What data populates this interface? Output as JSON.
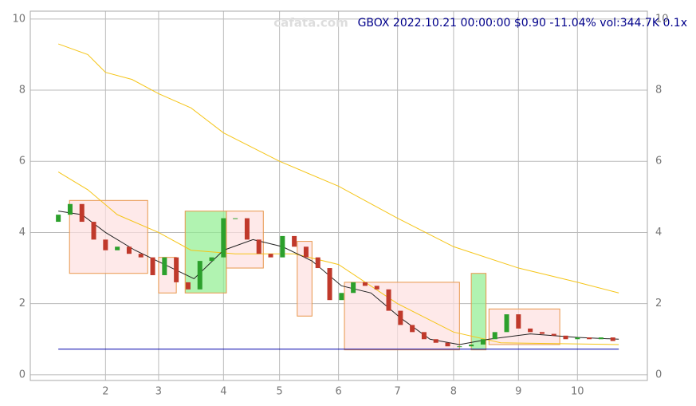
{
  "chart_data": {
    "type": "candlestick",
    "title": "GBOX 2022.10.21 00:00:00 $0.90 -11.04% vol:344.7K 0.1x",
    "watermark": "cafata.com",
    "xlim": [
      -9.5,
      199.7
    ],
    "ylim": [
      -0.16,
      10.22
    ],
    "xticks": [
      {
        "value": 16,
        "label": "2"
      },
      {
        "value": 34,
        "label": "3"
      },
      {
        "value": 56,
        "label": "4"
      },
      {
        "value": 75,
        "label": "5"
      },
      {
        "value": 95,
        "label": "6"
      },
      {
        "value": 115,
        "label": "7"
      },
      {
        "value": 134,
        "label": "8"
      },
      {
        "value": 156,
        "label": "9"
      },
      {
        "value": 176,
        "label": "10"
      }
    ],
    "yticks": [
      0,
      2,
      4,
      6,
      8,
      10
    ],
    "grid": true,
    "up_color": "#2ca02c",
    "down_color": "#c0392b",
    "x": [
      0,
      4,
      8,
      12,
      16,
      20,
      24,
      28,
      32,
      36,
      40,
      44,
      48,
      52,
      56,
      60,
      64,
      68,
      72,
      76,
      80,
      84,
      88,
      92,
      96,
      100,
      104,
      108,
      112,
      116,
      120,
      124,
      128,
      132,
      136,
      140,
      144,
      148,
      152,
      156,
      160,
      164,
      168,
      172,
      176,
      180,
      184,
      188
    ],
    "open": [
      4.3,
      4.5,
      4.8,
      4.3,
      3.8,
      3.5,
      3.6,
      3.4,
      3.3,
      2.8,
      3.3,
      2.6,
      2.4,
      3.2,
      3.3,
      4.4,
      4.4,
      3.8,
      3.4,
      3.3,
      3.9,
      3.6,
      3.3,
      3.0,
      2.1,
      2.3,
      2.6,
      2.5,
      2.4,
      1.8,
      1.4,
      1.2,
      1.0,
      0.9,
      0.8,
      0.8,
      0.85,
      1.0,
      1.2,
      1.7,
      1.3,
      1.2,
      1.15,
      1.1,
      1.0,
      1.05,
      1.0,
      1.05
    ],
    "close": [
      4.5,
      4.8,
      4.3,
      3.8,
      3.5,
      3.6,
      3.4,
      3.3,
      2.8,
      3.3,
      2.6,
      2.4,
      3.2,
      3.3,
      4.4,
      4.4,
      3.8,
      3.4,
      3.3,
      3.9,
      3.6,
      3.3,
      3.0,
      2.1,
      2.3,
      2.6,
      2.5,
      2.4,
      1.8,
      1.4,
      1.2,
      1.0,
      0.9,
      0.8,
      0.8,
      0.85,
      1.0,
      1.2,
      1.7,
      1.3,
      1.2,
      1.15,
      1.1,
      1.0,
      1.05,
      1.0,
      1.05,
      0.95
    ],
    "lines": [
      {
        "color": "#f5c518",
        "x": [
          0,
          10,
          16,
          25,
          34,
          45,
          56,
          75,
          95,
          115,
          134,
          156,
          176,
          190
        ],
        "values": [
          9.3,
          9.0,
          8.5,
          8.3,
          7.9,
          7.5,
          6.8,
          6.0,
          5.3,
          4.4,
          3.6,
          3.0,
          2.6,
          2.3
        ]
      },
      {
        "color": "#f5c518",
        "x": [
          0,
          10,
          20,
          34,
          45,
          60,
          80,
          95,
          115,
          134,
          150,
          190
        ],
        "values": [
          5.7,
          5.2,
          4.5,
          4.0,
          3.5,
          3.4,
          3.4,
          3.1,
          2.0,
          1.2,
          0.9,
          0.85
        ]
      },
      {
        "color": "#222222",
        "x": [
          0,
          8,
          16,
          26,
          36,
          46,
          56,
          66,
          76,
          86,
          96,
          106,
          116,
          126,
          136,
          146,
          160,
          176,
          190
        ],
        "values": [
          4.6,
          4.5,
          4.0,
          3.5,
          3.1,
          2.7,
          3.5,
          3.8,
          3.6,
          3.2,
          2.5,
          2.3,
          1.6,
          1.0,
          0.85,
          1.0,
          1.15,
          1.05,
          1.0
        ]
      }
    ],
    "baseline": {
      "color": "#0000aa",
      "value": 0.72,
      "x": [
        0,
        190
      ]
    },
    "boxes": [
      {
        "x0": 3.8,
        "x1": 30.3,
        "low": 2.85,
        "high": 4.9,
        "color": "pink"
      },
      {
        "x0": 34,
        "x1": 40,
        "low": 2.3,
        "high": 3.3,
        "color": "pink"
      },
      {
        "x0": 43,
        "x1": 57,
        "low": 2.3,
        "high": 4.6,
        "color": "green"
      },
      {
        "x0": 57,
        "x1": 69.5,
        "low": 3.0,
        "high": 4.6,
        "color": "pink"
      },
      {
        "x0": 81,
        "x1": 86,
        "low": 1.65,
        "high": 3.75,
        "color": "pink"
      },
      {
        "x0": 97,
        "x1": 136,
        "low": 0.7,
        "high": 2.6,
        "color": "pink"
      },
      {
        "x0": 140,
        "x1": 145,
        "low": 0.7,
        "high": 2.85,
        "color": "green"
      },
      {
        "x0": 146,
        "x1": 170,
        "low": 0.85,
        "high": 1.85,
        "color": "pink"
      }
    ]
  }
}
